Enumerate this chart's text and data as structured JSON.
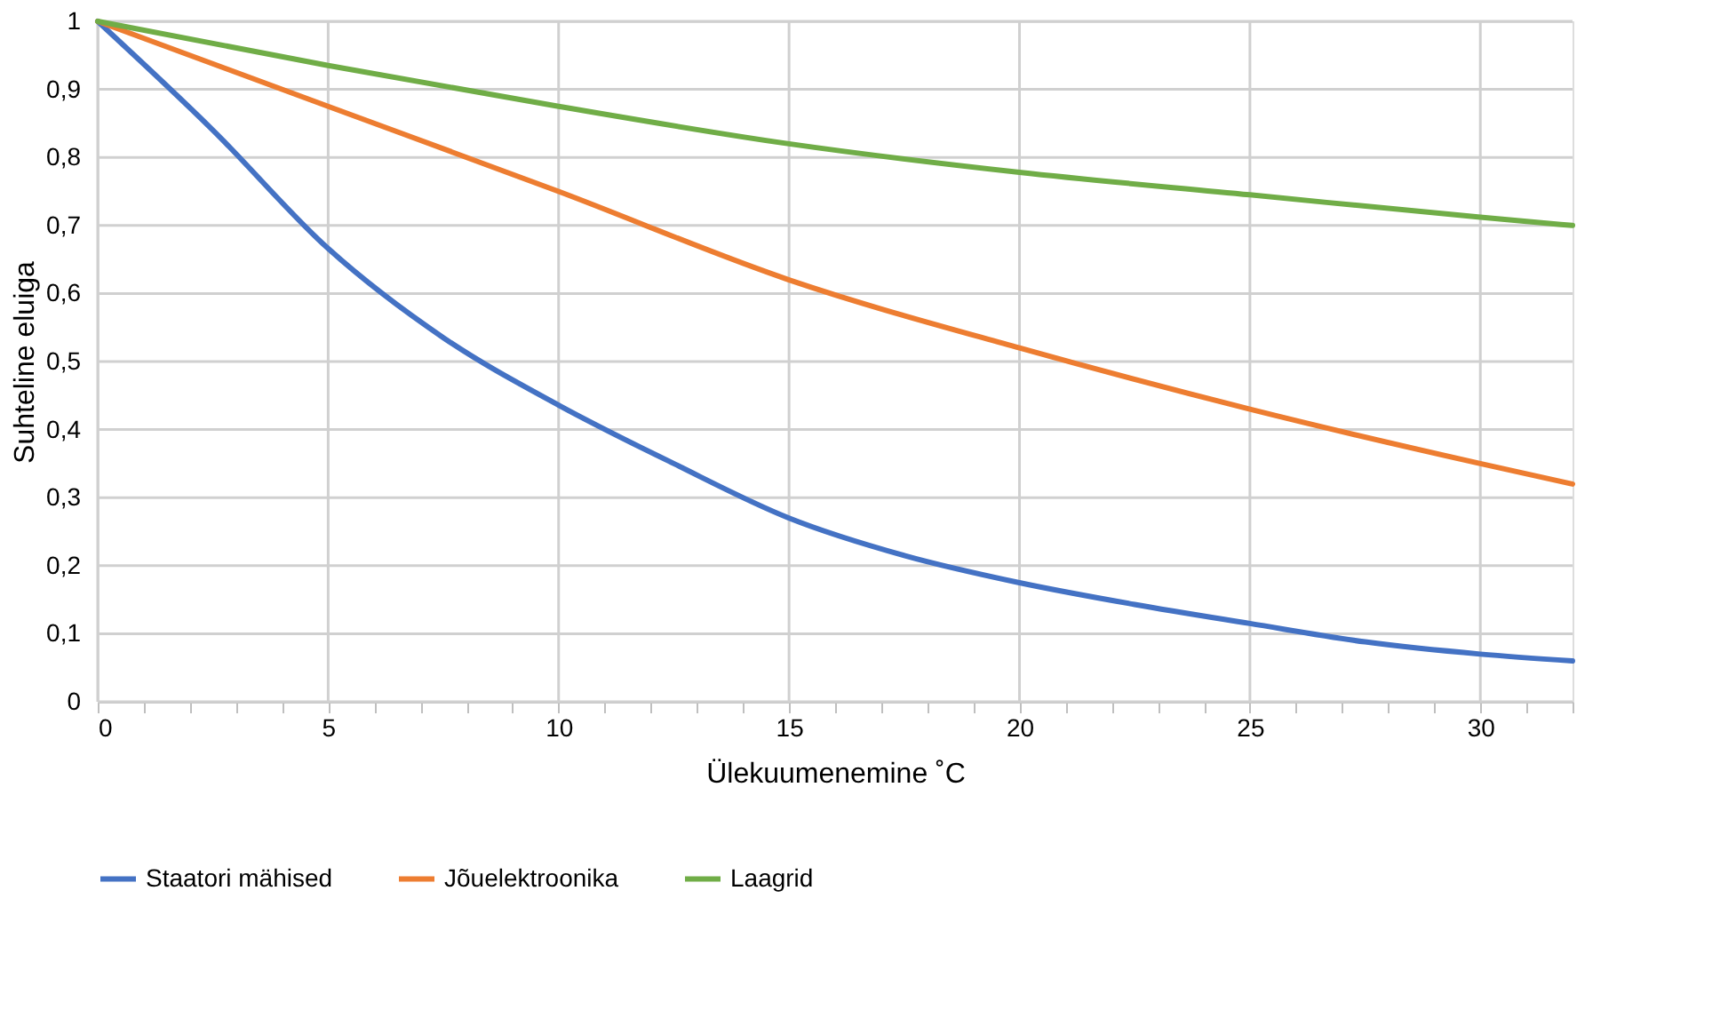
{
  "chart_data": {
    "type": "line",
    "xlabel": "Ülekuumenemine ˚C",
    "ylabel": "Suhteline eluiga",
    "series": [
      {
        "name": "Staatori mähised",
        "color": "#4472c4",
        "x": [
          0,
          2.5,
          5,
          7.5,
          10,
          12.5,
          15,
          17.5,
          20,
          22.5,
          25,
          27.5,
          30,
          32
        ],
        "values": [
          1,
          0.84,
          0.666,
          0.535,
          0.436,
          0.35,
          0.27,
          0.215,
          0.175,
          0.143,
          0.115,
          0.088,
          0.07,
          0.06
        ]
      },
      {
        "name": "Jõuelektroonika",
        "color": "#ed7d31",
        "x": [
          0,
          5,
          10,
          15,
          20,
          25,
          30,
          32
        ],
        "values": [
          1,
          0.875,
          0.75,
          0.62,
          0.52,
          0.43,
          0.35,
          0.32
        ]
      },
      {
        "name": "Laagrid",
        "color": "#70ad47",
        "x": [
          0,
          5,
          10,
          15,
          20,
          25,
          30,
          32
        ],
        "values": [
          1,
          0.935,
          0.875,
          0.82,
          0.778,
          0.745,
          0.712,
          0.7
        ]
      }
    ],
    "xlim": [
      0,
      32
    ],
    "xticks": [
      0,
      {
        "value": 1,
        "label": null
      },
      {
        "value": 2,
        "label": null
      },
      {
        "value": 3,
        "label": null
      },
      {
        "value": 4,
        "label": null
      },
      5,
      {
        "value": 6,
        "label": null
      },
      {
        "value": 7,
        "label": null
      },
      {
        "value": 8,
        "label": null
      },
      {
        "value": 9,
        "label": null
      },
      10,
      {
        "value": 11,
        "label": null
      },
      {
        "value": 12,
        "label": null
      },
      {
        "value": 13,
        "label": null
      },
      {
        "value": 14,
        "label": null
      },
      15,
      {
        "value": 16,
        "label": null
      },
      {
        "value": 17,
        "label": null
      },
      {
        "value": 18,
        "label": null
      },
      {
        "value": 19,
        "label": null
      },
      20,
      {
        "value": 21,
        "label": null
      },
      {
        "value": 22,
        "label": null
      },
      {
        "value": 23,
        "label": null
      },
      {
        "value": 24,
        "label": null
      },
      25,
      {
        "value": 26,
        "label": null
      },
      {
        "value": 27,
        "label": null
      },
      {
        "value": 28,
        "label": null
      },
      {
        "value": 29,
        "label": null
      },
      30,
      {
        "value": 31,
        "label": null
      },
      {
        "value": 32,
        "label": null
      }
    ],
    "ylim": [
      0,
      1
    ],
    "yticks": [
      0,
      {
        "value": 0.1,
        "label": "0,1"
      },
      {
        "value": 0.2,
        "label": "0,2"
      },
      {
        "value": 0.3,
        "label": "0,3"
      },
      {
        "value": 0.4,
        "label": "0,4"
      },
      {
        "value": 0.5,
        "label": "0,5"
      },
      {
        "value": 0.6,
        "label": "0,6"
      },
      {
        "value": 0.7,
        "label": "0,7"
      },
      {
        "value": 0.8,
        "label": "0,8"
      },
      {
        "value": 0.9,
        "label": "0,9"
      },
      1
    ],
    "grid": true,
    "legend": "bottom",
    "marker": "none",
    "line_style": "solid"
  }
}
